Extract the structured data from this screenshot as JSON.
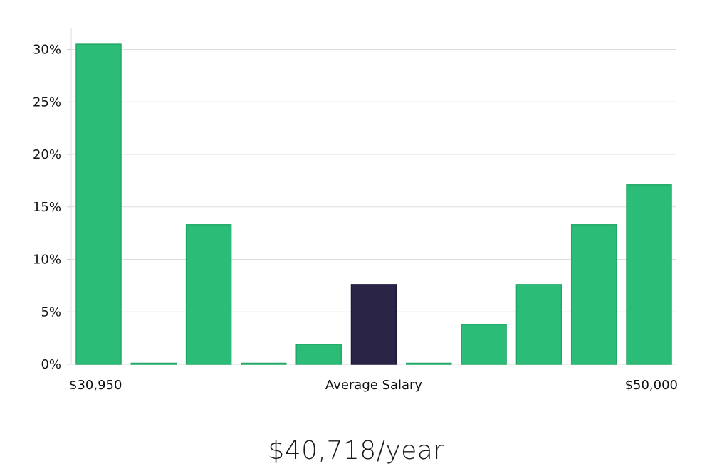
{
  "headline": "$40,718/year",
  "colors": {
    "bar": "#2bbd78",
    "bar_highlight": "#2a2547",
    "grid": "#dddddd",
    "axis": "#cccccc"
  },
  "chart_data": {
    "type": "bar",
    "title": "",
    "xlabel": "Average Salary",
    "ylabel": "",
    "x_left_label": "$30,950",
    "x_right_label": "$50,000",
    "ylim": [
      0,
      32
    ],
    "yticks": [
      0,
      5,
      10,
      15,
      20,
      25,
      30
    ],
    "ytick_labels": [
      "0%",
      "5%",
      "10%",
      "15%",
      "20%",
      "25%",
      "30%"
    ],
    "grid": true,
    "values": [
      30.5,
      0,
      13.3,
      0,
      1.9,
      7.6,
      0,
      3.8,
      7.6,
      13.3,
      17.1
    ],
    "highlight_index": 5
  }
}
